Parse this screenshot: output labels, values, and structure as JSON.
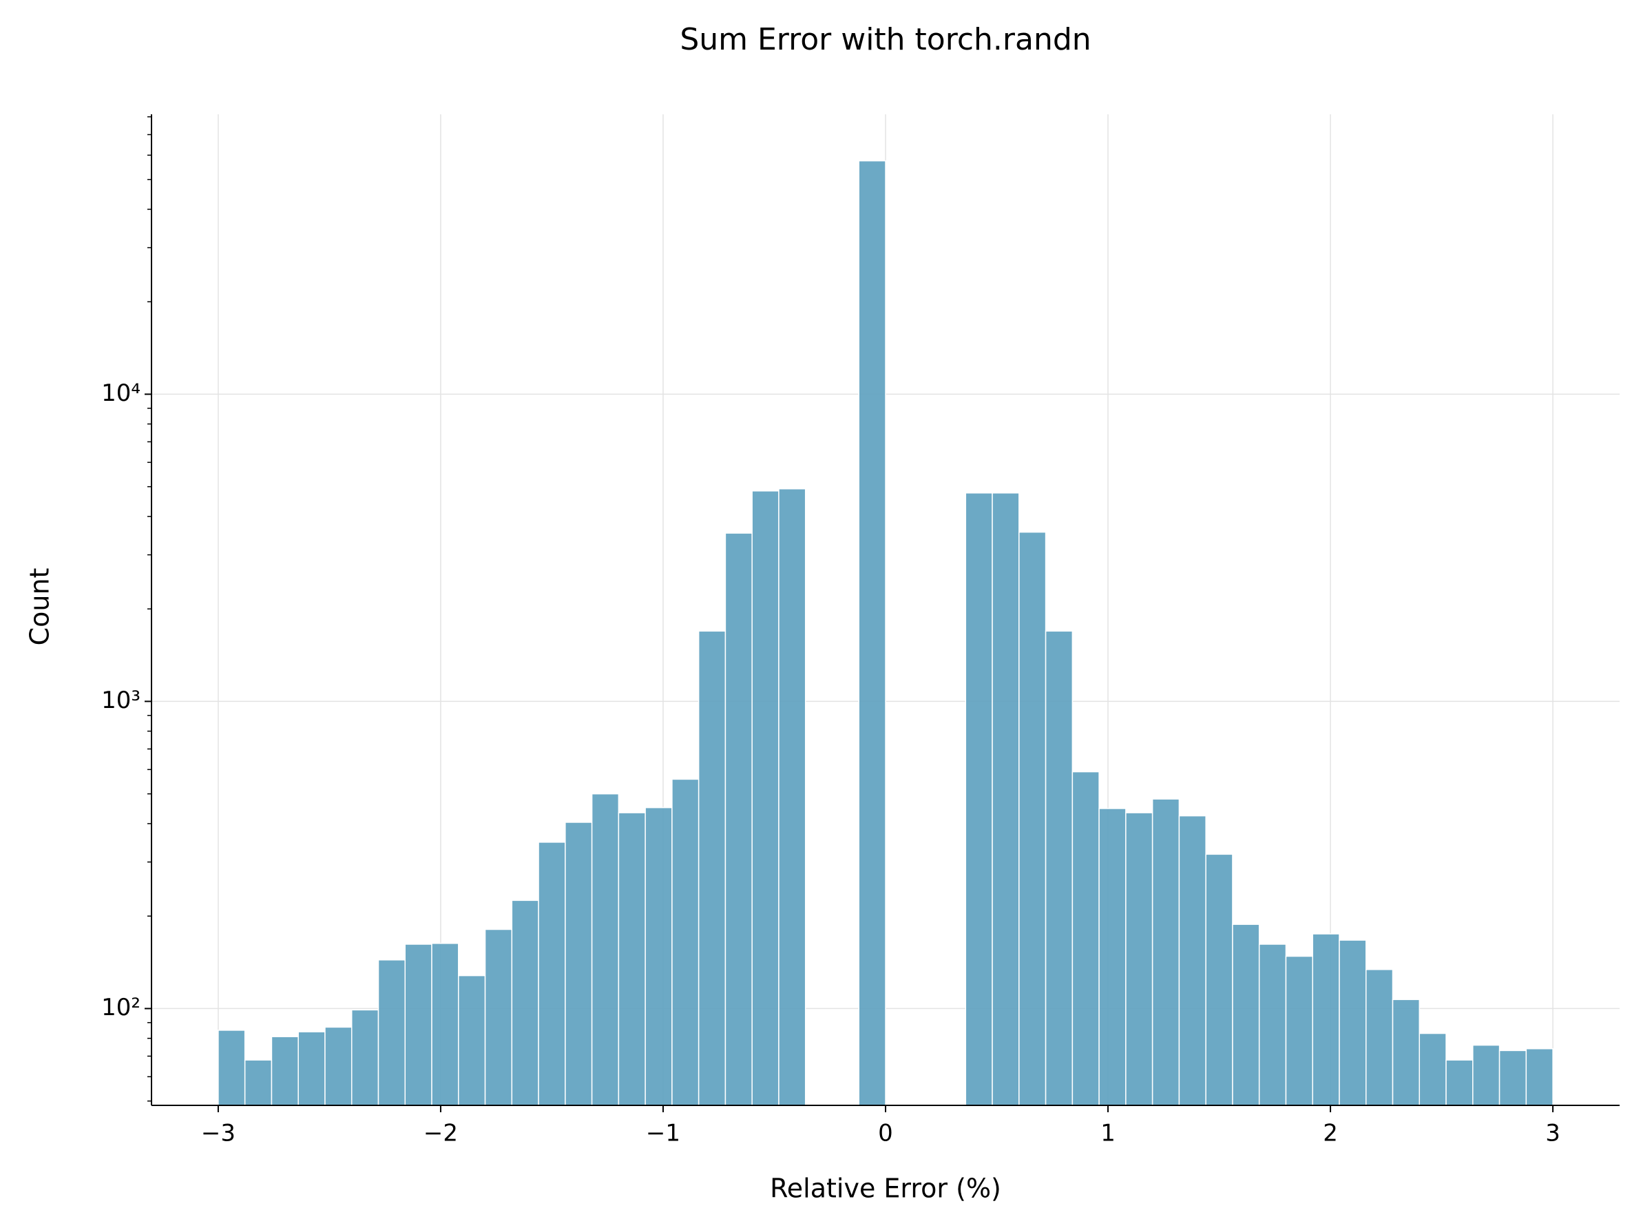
{
  "chart_data": {
    "type": "histogram",
    "title": "Sum Error with torch.randn",
    "x_label": "Relative Error (%)",
    "y_label": "Count",
    "bins": [
      -3,
      -2.88,
      -2.76,
      -2.64,
      -2.52,
      -2.4,
      -2.28,
      -2.16,
      -2.04,
      -1.92,
      -1.8,
      -1.68,
      -1.56,
      -1.44,
      -1.32,
      -1.2,
      -1.08,
      -0.96,
      -0.84,
      -0.72,
      -0.6,
      -0.48,
      -0.36,
      -0.24,
      -0.12,
      0,
      0.12,
      0.24,
      0.36,
      0.48,
      0.6,
      0.72,
      0.84,
      0.96,
      1.08,
      1.2,
      1.32,
      1.44,
      1.56,
      1.68,
      1.8,
      1.92,
      2.04,
      2.16,
      2.28,
      2.4,
      2.52,
      2.64,
      2.76,
      2.88,
      3
    ],
    "values": [
      85,
      68,
      81,
      84,
      87,
      99,
      144,
      162,
      163,
      128,
      181,
      225,
      348,
      404,
      500,
      434,
      451,
      558,
      1694,
      3530,
      4843,
      4920,
      0,
      0,
      57500,
      0,
      0,
      0,
      4770,
      4770,
      3556,
      1694,
      590,
      448,
      434,
      481,
      424,
      318,
      188,
      162,
      148,
      175,
      167,
      134,
      107,
      83,
      68,
      76,
      73,
      74
    ],
    "color": "#5fa2c0",
    "xlim": [
      -3.3,
      3.3
    ],
    "xticks": [
      {
        "value": -3,
        "label": "−3"
      },
      {
        "value": -2,
        "label": "−2"
      },
      {
        "value": -1,
        "label": "−1"
      },
      0,
      1,
      2,
      3
    ],
    "ylim": [
      48.4,
      81500
    ],
    "y_scale": "log",
    "yticks": [
      {
        "value": 100,
        "label": "10²"
      },
      {
        "value": 1000,
        "label": "10³"
      },
      {
        "value": 10000,
        "label": "10⁴"
      }
    ],
    "yminorticks": [
      50,
      60,
      70,
      80,
      90,
      200,
      300,
      400,
      500,
      600,
      700,
      800,
      900,
      2000,
      3000,
      4000,
      5000,
      6000,
      7000,
      8000,
      9000,
      20000,
      30000,
      40000,
      50000,
      60000,
      70000,
      80000
    ],
    "grid": true
  }
}
